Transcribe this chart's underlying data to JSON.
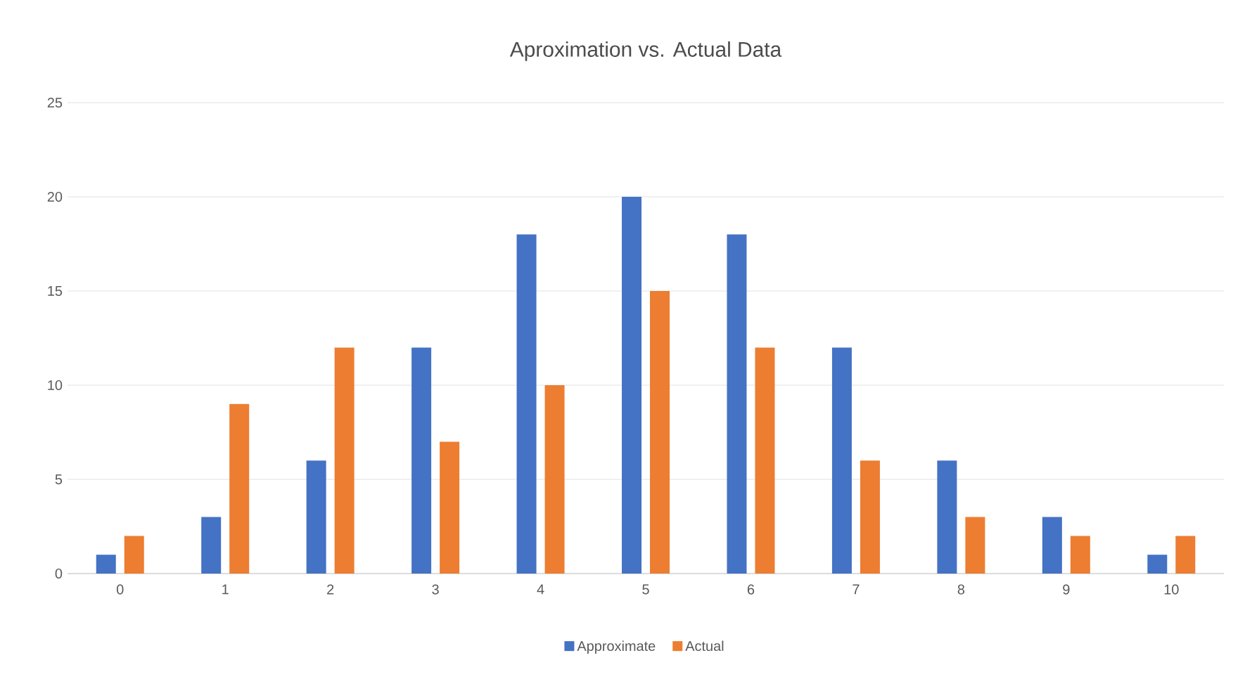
{
  "chart_data": {
    "type": "bar",
    "title": "Aproximation vs. Actual Data",
    "categories": [
      "0",
      "1",
      "2",
      "3",
      "4",
      "5",
      "6",
      "7",
      "8",
      "9",
      "10"
    ],
    "series": [
      {
        "name": "Approximate",
        "color": "#4472c4",
        "values": [
          1,
          3,
          6,
          12,
          18,
          20,
          18,
          12,
          6,
          3,
          1
        ]
      },
      {
        "name": "Actual",
        "color": "#ed7d31",
        "values": [
          2,
          9,
          12,
          7,
          10,
          15,
          12,
          6,
          3,
          2,
          2
        ]
      }
    ],
    "ylim": [
      0,
      25
    ],
    "yticks": [
      0,
      5,
      10,
      15,
      20,
      25
    ],
    "grid": "y",
    "legend": "bottom"
  }
}
